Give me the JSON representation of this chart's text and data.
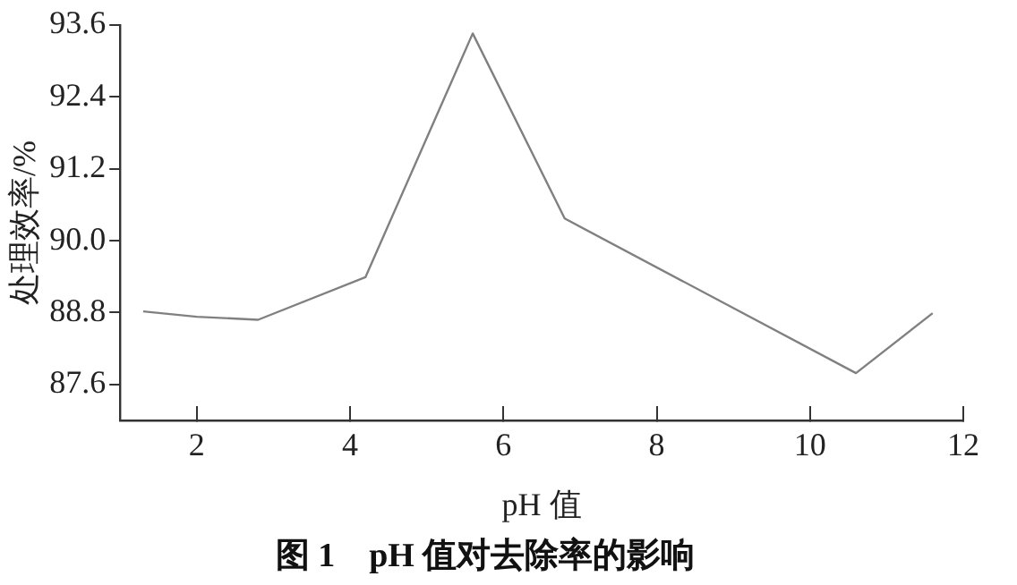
{
  "chart_data": {
    "type": "line",
    "title": "图 1　pH 值对去除率的影响",
    "xlabel": "pH 值",
    "ylabel": "处理效率/%",
    "x": [
      1.3,
      2.0,
      2.8,
      4.2,
      5.6,
      6.8,
      10.6,
      11.6
    ],
    "series": [
      {
        "color": "#808080",
        "values": [
          88.82,
          88.73,
          88.68,
          89.39,
          93.46,
          90.37,
          87.79,
          88.79
        ]
      }
    ],
    "xlim": [
      1,
      12
    ],
    "xticks": [
      2,
      4,
      6,
      8,
      10,
      12
    ],
    "ylim": [
      87,
      93.6
    ],
    "yticks": [
      87.6,
      88.8,
      {
        "value": 90,
        "label": "90.0"
      },
      91.2,
      92.4,
      93.6
    ],
    "grid": false,
    "legend": false,
    "marker": "none",
    "line_style": "solid"
  }
}
